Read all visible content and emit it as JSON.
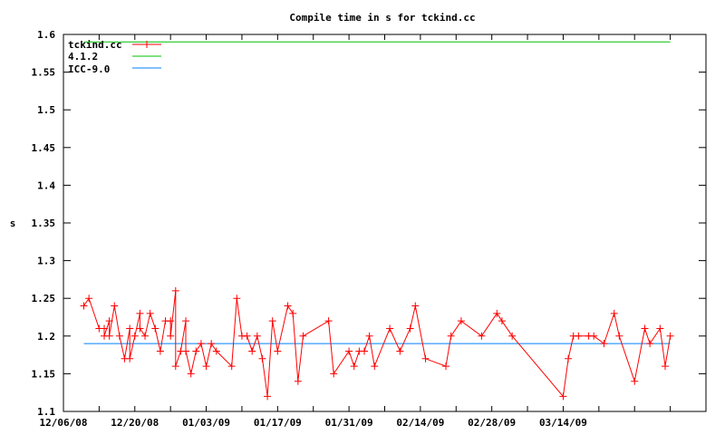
{
  "chart_data": {
    "type": "line",
    "title": "Compile time in s for tckind.cc",
    "xlabel": "",
    "ylabel": "s",
    "xlim": [
      "12/06/08",
      "04/11/09"
    ],
    "ylim": [
      1.1,
      1.6
    ],
    "yticks": [
      "1.1",
      "1.15",
      "1.2",
      "1.25",
      "1.3",
      "1.35",
      "1.4",
      "1.45",
      "1.5",
      "1.55",
      "1.6"
    ],
    "xticks": [
      "12/06/08",
      "12/20/08",
      "01/03/09",
      "01/17/09",
      "01/31/09",
      "02/14/09",
      "02/28/09",
      "03/14/09"
    ],
    "grid": false,
    "legend_position": "top-left",
    "colors": {
      "tckind": "#ff0000",
      "gcc": "#00c000",
      "icc": "#0080ff"
    },
    "series": [
      {
        "name": "tckind.cc",
        "marker": "plus",
        "points": [
          [
            "12/10/08",
            1.24
          ],
          [
            "12/11/08",
            1.25
          ],
          [
            "12/13/08",
            1.21
          ],
          [
            "12/14/08",
            1.21
          ],
          [
            "12/14/08",
            1.2
          ],
          [
            "12/15/08",
            1.22
          ],
          [
            "12/15/08",
            1.2
          ],
          [
            "12/16/08",
            1.24
          ],
          [
            "12/17/08",
            1.2
          ],
          [
            "12/18/08",
            1.17
          ],
          [
            "12/19/08",
            1.21
          ],
          [
            "12/19/08",
            1.17
          ],
          [
            "12/20/08",
            1.2
          ],
          [
            "12/21/08",
            1.23
          ],
          [
            "12/21/08",
            1.21
          ],
          [
            "12/22/08",
            1.2
          ],
          [
            "12/23/08",
            1.23
          ],
          [
            "12/24/08",
            1.21
          ],
          [
            "12/25/08",
            1.18
          ],
          [
            "12/26/08",
            1.22
          ],
          [
            "12/27/08",
            1.22
          ],
          [
            "12/27/08",
            1.2
          ],
          [
            "12/28/08",
            1.26
          ],
          [
            "12/28/08",
            1.16
          ],
          [
            "12/29/08",
            1.18
          ],
          [
            "12/30/08",
            1.22
          ],
          [
            "12/30/08",
            1.18
          ],
          [
            "12/31/08",
            1.15
          ],
          [
            "01/01/09",
            1.18
          ],
          [
            "01/02/09",
            1.19
          ],
          [
            "01/03/09",
            1.16
          ],
          [
            "01/04/09",
            1.19
          ],
          [
            "01/05/09",
            1.18
          ],
          [
            "01/08/09",
            1.16
          ],
          [
            "01/09/09",
            1.25
          ],
          [
            "01/10/09",
            1.2
          ],
          [
            "01/11/09",
            1.2
          ],
          [
            "01/12/09",
            1.18
          ],
          [
            "01/13/09",
            1.2
          ],
          [
            "01/14/09",
            1.17
          ],
          [
            "01/15/09",
            1.12
          ],
          [
            "01/16/09",
            1.22
          ],
          [
            "01/17/09",
            1.18
          ],
          [
            "01/19/09",
            1.24
          ],
          [
            "01/20/09",
            1.23
          ],
          [
            "01/21/09",
            1.14
          ],
          [
            "01/22/09",
            1.2
          ],
          [
            "01/27/09",
            1.22
          ],
          [
            "01/28/09",
            1.15
          ],
          [
            "01/31/09",
            1.18
          ],
          [
            "02/01/09",
            1.16
          ],
          [
            "02/02/09",
            1.18
          ],
          [
            "02/03/09",
            1.18
          ],
          [
            "02/04/09",
            1.2
          ],
          [
            "02/05/09",
            1.16
          ],
          [
            "02/08/09",
            1.21
          ],
          [
            "02/10/09",
            1.18
          ],
          [
            "02/12/09",
            1.21
          ],
          [
            "02/13/09",
            1.24
          ],
          [
            "02/15/09",
            1.17
          ],
          [
            "02/19/09",
            1.16
          ],
          [
            "02/20/09",
            1.2
          ],
          [
            "02/22/09",
            1.22
          ],
          [
            "02/26/09",
            1.2
          ],
          [
            "03/01/09",
            1.23
          ],
          [
            "03/02/09",
            1.22
          ],
          [
            "03/04/09",
            1.2
          ],
          [
            "03/14/09",
            1.12
          ],
          [
            "03/15/09",
            1.17
          ],
          [
            "03/16/09",
            1.2
          ],
          [
            "03/17/09",
            1.2
          ],
          [
            "03/19/09",
            1.2
          ],
          [
            "03/20/09",
            1.2
          ],
          [
            "03/22/09",
            1.19
          ],
          [
            "03/24/09",
            1.23
          ],
          [
            "03/25/09",
            1.2
          ],
          [
            "03/28/09",
            1.14
          ],
          [
            "03/30/09",
            1.21
          ],
          [
            "03/31/09",
            1.19
          ],
          [
            "04/02/09",
            1.21
          ],
          [
            "04/03/09",
            1.16
          ],
          [
            "04/04/09",
            1.2
          ]
        ]
      },
      {
        "name": "4.1.2",
        "points": [
          [
            "12/10/08",
            1.59
          ],
          [
            "04/04/09",
            1.59
          ]
        ]
      },
      {
        "name": "ICC-9.0",
        "points": [
          [
            "12/10/08",
            1.19
          ],
          [
            "04/04/09",
            1.19
          ]
        ]
      }
    ]
  }
}
